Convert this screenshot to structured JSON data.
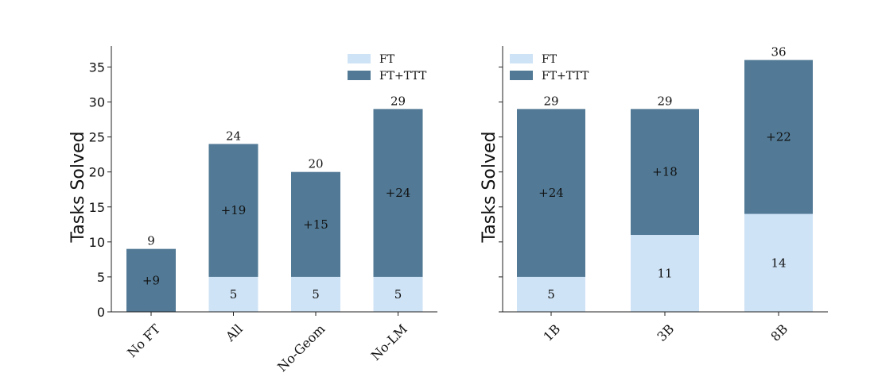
{
  "colors": {
    "ft": "#cfe3f6",
    "ftttt": "#527a96"
  },
  "chart_data": [
    {
      "type": "bar",
      "stacked": true,
      "categories": [
        "No FT",
        "All",
        "No-Geom",
        "No-LM"
      ],
      "series": [
        {
          "name": "FT",
          "values": [
            0,
            5,
            5,
            5
          ]
        },
        {
          "name": "FT+TTT",
          "values": [
            9,
            19,
            15,
            24
          ]
        }
      ],
      "segment_labels": {
        "FT": [
          "",
          "5",
          "5",
          "5"
        ],
        "FT+TTT": [
          "+9",
          "+19",
          "+15",
          "+24"
        ]
      },
      "totals": [
        "9",
        "24",
        "20",
        "29"
      ],
      "title": "",
      "xlabel": "",
      "ylabel": "Tasks Solved",
      "ylim": [
        0,
        38
      ],
      "yticks": [
        0,
        5,
        10,
        15,
        20,
        25,
        30,
        35
      ],
      "show_ytick_labels": true,
      "grid": false,
      "legend": [
        "FT",
        "FT+TTT"
      ],
      "legend_position": "top-right"
    },
    {
      "type": "bar",
      "stacked": true,
      "categories": [
        "1B",
        "3B",
        "8B"
      ],
      "series": [
        {
          "name": "FT",
          "values": [
            5,
            11,
            14
          ]
        },
        {
          "name": "FT+TTT",
          "values": [
            24,
            18,
            22
          ]
        }
      ],
      "segment_labels": {
        "FT": [
          "5",
          "11",
          "14"
        ],
        "FT+TTT": [
          "+24",
          "+18",
          "+22"
        ]
      },
      "totals": [
        "29",
        "29",
        "36"
      ],
      "title": "",
      "xlabel": "",
      "ylabel": "Tasks Solved",
      "ylim": [
        0,
        38
      ],
      "yticks": [
        0,
        5,
        10,
        15,
        20,
        25,
        30,
        35
      ],
      "show_ytick_labels": false,
      "grid": false,
      "legend": [
        "FT",
        "FT+TTT"
      ],
      "legend_position": "top-left"
    }
  ]
}
